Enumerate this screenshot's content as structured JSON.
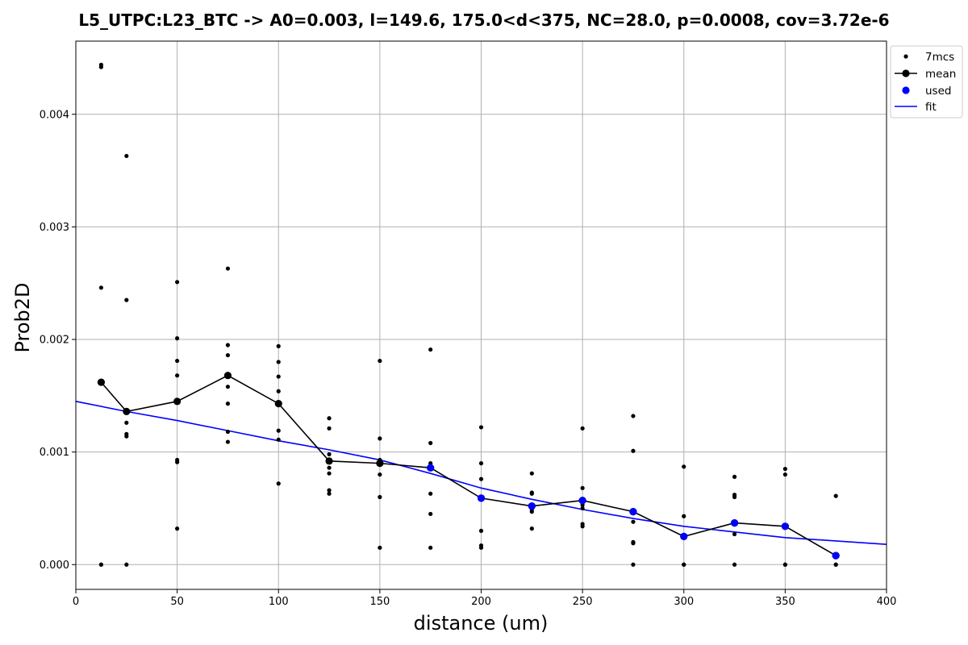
{
  "chart_data": {
    "type": "scatter",
    "title": "L5_UTPC:L23_BTC -> A0=0.003, l=149.6, 175.0<d<375, NC=28.0, p=0.0008, cov=3.72e-6",
    "xlabel": "distance (um)",
    "ylabel": "Prob2D",
    "xlim": [
      0,
      400
    ],
    "ylim": [
      -0.00022,
      0.00465
    ],
    "xticks": [
      0,
      50,
      100,
      150,
      200,
      250,
      300,
      350,
      400
    ],
    "yticks": [
      0.0,
      0.001,
      0.002,
      0.003,
      0.004
    ],
    "ytick_labels": [
      "0.000",
      "0.001",
      "0.002",
      "0.003",
      "0.004"
    ],
    "grid": true,
    "legend_position": "upper-right-outside",
    "colors": {
      "raw": "#000000",
      "mean": "#000000",
      "used": "#0000ff",
      "fit": "#0000ff"
    },
    "series": [
      {
        "name": "7mcs",
        "kind": "scatter",
        "points": [
          [
            12.5,
            0.00444
          ],
          [
            12.5,
            0.00442
          ],
          [
            12.5,
            0.00246
          ],
          [
            12.5,
            0.0
          ],
          [
            12.5,
            0.0
          ],
          [
            25,
            0.00363
          ],
          [
            25,
            0.00235
          ],
          [
            25,
            0.00126
          ],
          [
            25,
            0.00116
          ],
          [
            25,
            0.00114
          ],
          [
            25,
            0.0
          ],
          [
            50,
            0.00251
          ],
          [
            50,
            0.00201
          ],
          [
            50,
            0.00181
          ],
          [
            50,
            0.00168
          ],
          [
            50,
            0.00093
          ],
          [
            50,
            0.00091
          ],
          [
            50,
            0.00032
          ],
          [
            75,
            0.00263
          ],
          [
            75,
            0.00195
          ],
          [
            75,
            0.00186
          ],
          [
            75,
            0.00158
          ],
          [
            75,
            0.00143
          ],
          [
            75,
            0.00118
          ],
          [
            75,
            0.00109
          ],
          [
            100,
            0.00194
          ],
          [
            100,
            0.0018
          ],
          [
            100,
            0.00167
          ],
          [
            100,
            0.00154
          ],
          [
            100,
            0.00119
          ],
          [
            100,
            0.00111
          ],
          [
            100,
            0.00072
          ],
          [
            125,
            0.0013
          ],
          [
            125,
            0.00121
          ],
          [
            125,
            0.00098
          ],
          [
            125,
            0.00086
          ],
          [
            125,
            0.00081
          ],
          [
            125,
            0.00066
          ],
          [
            125,
            0.00063
          ],
          [
            150,
            0.00181
          ],
          [
            150,
            0.00112
          ],
          [
            150,
            0.00093
          ],
          [
            150,
            0.0008
          ],
          [
            150,
            0.0006
          ],
          [
            150,
            0.00015
          ],
          [
            175,
            0.00191
          ],
          [
            175,
            0.00108
          ],
          [
            175,
            0.0009
          ],
          [
            175,
            0.00088
          ],
          [
            175,
            0.00063
          ],
          [
            175,
            0.00045
          ],
          [
            175,
            0.00015
          ],
          [
            200,
            0.00122
          ],
          [
            200,
            0.0009
          ],
          [
            200,
            0.00076
          ],
          [
            200,
            0.0003
          ],
          [
            200,
            0.00017
          ],
          [
            200,
            0.00015
          ],
          [
            225,
            0.00081
          ],
          [
            225,
            0.00064
          ],
          [
            225,
            0.00063
          ],
          [
            225,
            0.00049
          ],
          [
            225,
            0.00047
          ],
          [
            225,
            0.00032
          ],
          [
            250,
            0.00121
          ],
          [
            250,
            0.00068
          ],
          [
            250,
            0.00053
          ],
          [
            250,
            0.0005
          ],
          [
            250,
            0.00036
          ],
          [
            250,
            0.00034
          ],
          [
            275,
            0.00132
          ],
          [
            275,
            0.00101
          ],
          [
            275,
            0.00038
          ],
          [
            275,
            0.0002
          ],
          [
            275,
            0.00019
          ],
          [
            275,
            0.0
          ],
          [
            300,
            0.00087
          ],
          [
            300,
            0.00043
          ],
          [
            300,
            0.00025
          ],
          [
            300,
            0.0
          ],
          [
            300,
            0.0
          ],
          [
            325,
            0.00078
          ],
          [
            325,
            0.00062
          ],
          [
            325,
            0.0006
          ],
          [
            325,
            0.00027
          ],
          [
            325,
            0.0
          ],
          [
            350,
            0.00085
          ],
          [
            350,
            0.0008
          ],
          [
            350,
            0.0
          ],
          [
            350,
            0.0
          ],
          [
            375,
            0.00061
          ],
          [
            375,
            0.0
          ],
          [
            375,
            0.0
          ]
        ]
      },
      {
        "name": "mean",
        "kind": "line-marker",
        "x": [
          12.5,
          25,
          50,
          75,
          100,
          125,
          150,
          175,
          200,
          225,
          250,
          275,
          300,
          325,
          350,
          375
        ],
        "y": [
          0.00162,
          0.00136,
          0.00145,
          0.00168,
          0.00143,
          0.00092,
          0.0009,
          0.00086,
          0.00059,
          0.00052,
          0.00057,
          0.00047,
          0.00025,
          0.00037,
          0.00034,
          8e-05
        ]
      },
      {
        "name": "used",
        "kind": "scatter",
        "x": [
          175,
          200,
          225,
          250,
          275,
          300,
          325,
          350,
          375
        ],
        "y": [
          0.00086,
          0.00059,
          0.00052,
          0.00057,
          0.00047,
          0.00025,
          0.00037,
          0.00034,
          8e-05
        ]
      },
      {
        "name": "fit",
        "kind": "line",
        "x": [
          0,
          25,
          50,
          75,
          100,
          125,
          150,
          175,
          200,
          225,
          250,
          275,
          300,
          325,
          350,
          375,
          400
        ],
        "y": [
          0.00145,
          0.00136,
          0.00128,
          0.00119,
          0.0011,
          0.00102,
          0.00093,
          0.00081,
          0.00068,
          0.00058,
          0.00049,
          0.00041,
          0.00034,
          0.00029,
          0.00024,
          0.00021,
          0.00018
        ]
      }
    ]
  }
}
